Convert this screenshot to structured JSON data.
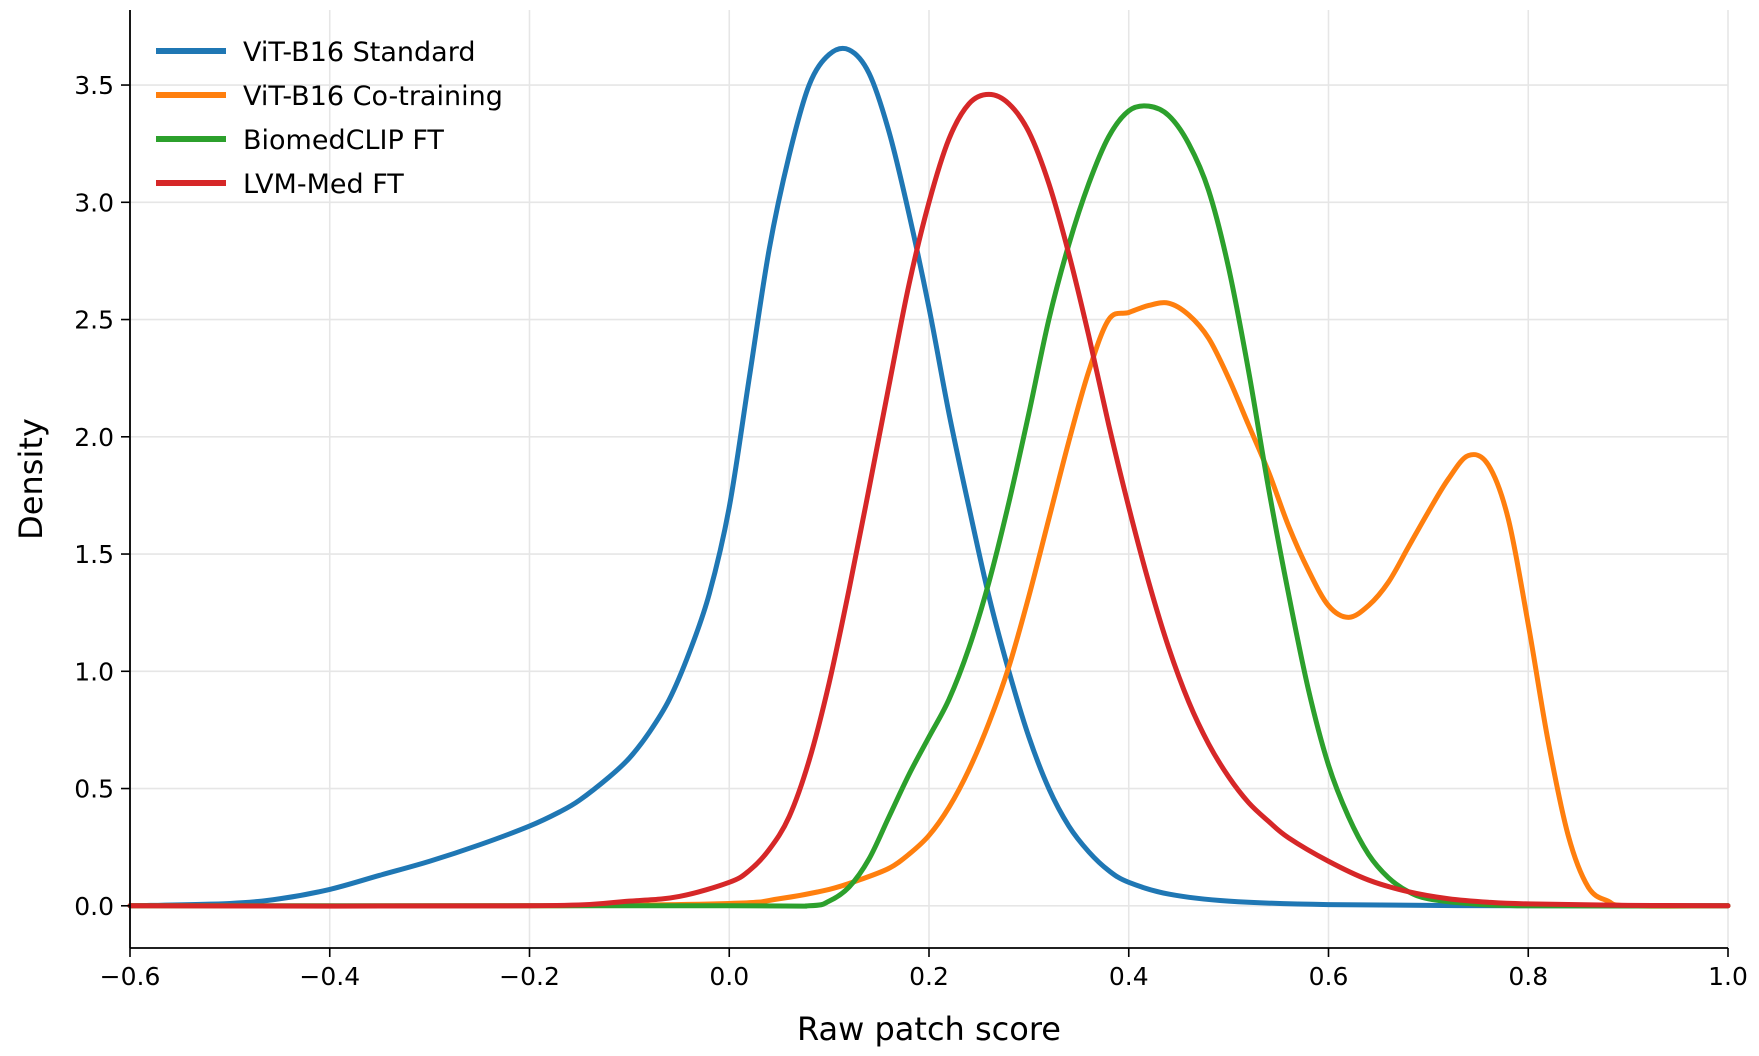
{
  "chart_data": {
    "type": "line",
    "title": "",
    "xlabel": "Raw patch score",
    "ylabel": "Density",
    "xlim": [
      -0.6,
      1.0
    ],
    "ylim": [
      -0.18,
      3.82
    ],
    "xticks": [
      -0.6,
      -0.4,
      -0.2,
      0.0,
      0.2,
      0.4,
      0.6,
      0.8,
      1.0
    ],
    "xtick_labels": [
      "−0.6",
      "−0.4",
      "−0.2",
      "0.0",
      "0.2",
      "0.4",
      "0.6",
      "0.8",
      "1.0"
    ],
    "yticks": [
      0.0,
      0.5,
      1.0,
      1.5,
      2.0,
      2.5,
      3.0,
      3.5
    ],
    "ytick_labels": [
      "0.0",
      "0.5",
      "1.0",
      "1.5",
      "2.0",
      "2.5",
      "3.0",
      "3.5"
    ],
    "grid": true,
    "legend": "top-left",
    "series": [
      {
        "name": "ViT-B16 Standard",
        "color": "#1f77b4",
        "points": [
          [
            -0.6,
            0.0
          ],
          [
            -0.5,
            0.01
          ],
          [
            -0.45,
            0.03
          ],
          [
            -0.4,
            0.07
          ],
          [
            -0.35,
            0.13
          ],
          [
            -0.3,
            0.19
          ],
          [
            -0.25,
            0.26
          ],
          [
            -0.2,
            0.34
          ],
          [
            -0.17,
            0.4
          ],
          [
            -0.15,
            0.45
          ],
          [
            -0.12,
            0.55
          ],
          [
            -0.1,
            0.63
          ],
          [
            -0.08,
            0.74
          ],
          [
            -0.06,
            0.88
          ],
          [
            -0.04,
            1.08
          ],
          [
            -0.02,
            1.33
          ],
          [
            0.0,
            1.7
          ],
          [
            0.02,
            2.25
          ],
          [
            0.04,
            2.8
          ],
          [
            0.06,
            3.2
          ],
          [
            0.08,
            3.5
          ],
          [
            0.1,
            3.63
          ],
          [
            0.12,
            3.65
          ],
          [
            0.14,
            3.55
          ],
          [
            0.16,
            3.3
          ],
          [
            0.18,
            2.95
          ],
          [
            0.2,
            2.55
          ],
          [
            0.22,
            2.1
          ],
          [
            0.24,
            1.7
          ],
          [
            0.26,
            1.32
          ],
          [
            0.28,
            1.0
          ],
          [
            0.3,
            0.72
          ],
          [
            0.32,
            0.5
          ],
          [
            0.34,
            0.34
          ],
          [
            0.36,
            0.23
          ],
          [
            0.38,
            0.15
          ],
          [
            0.4,
            0.1
          ],
          [
            0.44,
            0.05
          ],
          [
            0.5,
            0.02
          ],
          [
            0.6,
            0.005
          ],
          [
            0.8,
            0.0
          ],
          [
            1.0,
            0.0
          ]
        ]
      },
      {
        "name": "ViT-B16 Co-training",
        "color": "#ff7f0e",
        "points": [
          [
            -0.6,
            0.0
          ],
          [
            -0.2,
            0.0
          ],
          [
            0.0,
            0.01
          ],
          [
            0.05,
            0.03
          ],
          [
            0.1,
            0.07
          ],
          [
            0.13,
            0.11
          ],
          [
            0.16,
            0.16
          ],
          [
            0.18,
            0.22
          ],
          [
            0.2,
            0.3
          ],
          [
            0.22,
            0.42
          ],
          [
            0.24,
            0.58
          ],
          [
            0.26,
            0.78
          ],
          [
            0.28,
            1.02
          ],
          [
            0.3,
            1.32
          ],
          [
            0.32,
            1.65
          ],
          [
            0.34,
            1.98
          ],
          [
            0.36,
            2.28
          ],
          [
            0.38,
            2.5
          ],
          [
            0.4,
            2.53
          ],
          [
            0.42,
            2.56
          ],
          [
            0.44,
            2.57
          ],
          [
            0.46,
            2.52
          ],
          [
            0.48,
            2.42
          ],
          [
            0.5,
            2.25
          ],
          [
            0.52,
            2.05
          ],
          [
            0.54,
            1.85
          ],
          [
            0.56,
            1.62
          ],
          [
            0.58,
            1.43
          ],
          [
            0.6,
            1.28
          ],
          [
            0.62,
            1.23
          ],
          [
            0.64,
            1.28
          ],
          [
            0.66,
            1.38
          ],
          [
            0.68,
            1.53
          ],
          [
            0.7,
            1.68
          ],
          [
            0.72,
            1.82
          ],
          [
            0.74,
            1.92
          ],
          [
            0.76,
            1.88
          ],
          [
            0.78,
            1.65
          ],
          [
            0.8,
            1.2
          ],
          [
            0.82,
            0.7
          ],
          [
            0.84,
            0.3
          ],
          [
            0.86,
            0.08
          ],
          [
            0.88,
            0.02
          ],
          [
            0.9,
            0.0
          ],
          [
            1.0,
            0.0
          ]
        ]
      },
      {
        "name": "BiomedCLIP FT",
        "color": "#2ca02c",
        "points": [
          [
            -0.6,
            0.0
          ],
          [
            0.0,
            0.0
          ],
          [
            0.08,
            0.0
          ],
          [
            0.1,
            0.02
          ],
          [
            0.12,
            0.08
          ],
          [
            0.14,
            0.2
          ],
          [
            0.16,
            0.38
          ],
          [
            0.18,
            0.56
          ],
          [
            0.2,
            0.72
          ],
          [
            0.22,
            0.88
          ],
          [
            0.24,
            1.1
          ],
          [
            0.26,
            1.38
          ],
          [
            0.28,
            1.72
          ],
          [
            0.3,
            2.1
          ],
          [
            0.32,
            2.5
          ],
          [
            0.34,
            2.82
          ],
          [
            0.36,
            3.08
          ],
          [
            0.38,
            3.28
          ],
          [
            0.4,
            3.39
          ],
          [
            0.42,
            3.41
          ],
          [
            0.44,
            3.37
          ],
          [
            0.46,
            3.25
          ],
          [
            0.48,
            3.05
          ],
          [
            0.5,
            2.72
          ],
          [
            0.52,
            2.28
          ],
          [
            0.54,
            1.78
          ],
          [
            0.56,
            1.33
          ],
          [
            0.58,
            0.92
          ],
          [
            0.6,
            0.6
          ],
          [
            0.62,
            0.38
          ],
          [
            0.64,
            0.22
          ],
          [
            0.66,
            0.12
          ],
          [
            0.68,
            0.06
          ],
          [
            0.7,
            0.03
          ],
          [
            0.74,
            0.01
          ],
          [
            0.8,
            0.0
          ],
          [
            1.0,
            0.0
          ]
        ]
      },
      {
        "name": "LVM-Med FT",
        "color": "#d62728",
        "points": [
          [
            -0.6,
            0.0
          ],
          [
            -0.2,
            0.0
          ],
          [
            -0.1,
            0.02
          ],
          [
            -0.05,
            0.04
          ],
          [
            0.0,
            0.1
          ],
          [
            0.02,
            0.15
          ],
          [
            0.04,
            0.24
          ],
          [
            0.06,
            0.38
          ],
          [
            0.08,
            0.62
          ],
          [
            0.1,
            0.95
          ],
          [
            0.12,
            1.35
          ],
          [
            0.14,
            1.78
          ],
          [
            0.16,
            2.22
          ],
          [
            0.18,
            2.65
          ],
          [
            0.2,
            3.0
          ],
          [
            0.22,
            3.27
          ],
          [
            0.24,
            3.42
          ],
          [
            0.26,
            3.46
          ],
          [
            0.28,
            3.42
          ],
          [
            0.3,
            3.3
          ],
          [
            0.32,
            3.08
          ],
          [
            0.34,
            2.78
          ],
          [
            0.36,
            2.43
          ],
          [
            0.38,
            2.05
          ],
          [
            0.4,
            1.7
          ],
          [
            0.42,
            1.38
          ],
          [
            0.44,
            1.1
          ],
          [
            0.46,
            0.87
          ],
          [
            0.48,
            0.69
          ],
          [
            0.5,
            0.55
          ],
          [
            0.52,
            0.44
          ],
          [
            0.54,
            0.36
          ],
          [
            0.56,
            0.29
          ],
          [
            0.6,
            0.19
          ],
          [
            0.64,
            0.11
          ],
          [
            0.68,
            0.06
          ],
          [
            0.72,
            0.03
          ],
          [
            0.76,
            0.015
          ],
          [
            0.8,
            0.008
          ],
          [
            0.9,
            0.002
          ],
          [
            1.0,
            0.0
          ]
        ]
      }
    ]
  }
}
